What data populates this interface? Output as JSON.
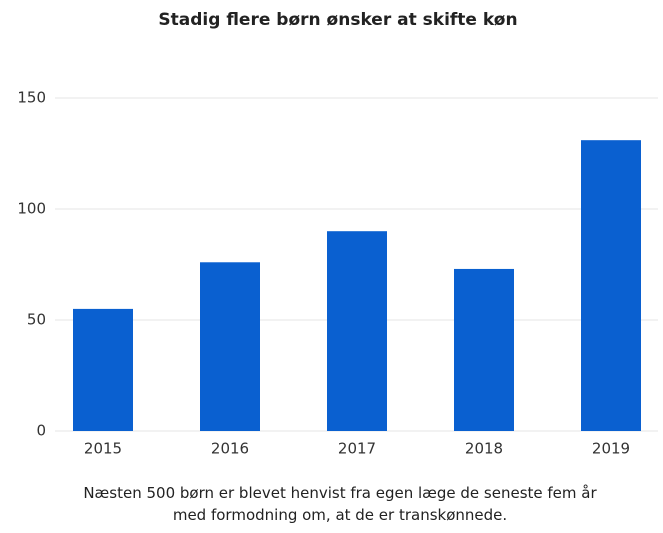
{
  "chart_data": {
    "type": "bar",
    "title": "Stadig flere børn ønsker at skifte køn",
    "categories": [
      "2015",
      "2016",
      "2017",
      "2018",
      "2019"
    ],
    "values": [
      55,
      76,
      90,
      73,
      131
    ],
    "color": "#0a60d0",
    "ylim": [
      0,
      150
    ],
    "yticks": [
      0,
      50,
      100,
      150
    ],
    "grid": true,
    "caption": "Næsten 500 børn er blevet henvist fra egen læge de seneste fem år med formodning om, at de er transkønnede."
  }
}
